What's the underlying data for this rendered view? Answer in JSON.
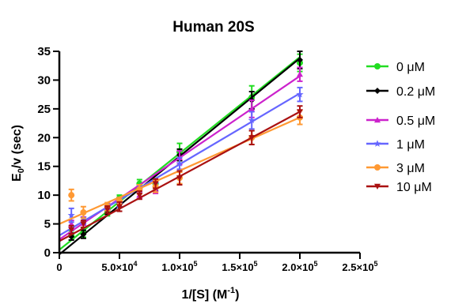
{
  "chart_data": {
    "type": "scatter",
    "title": "Human 20S",
    "xlabel": "1/[S] (M",
    "xlabel_sup": "-1",
    "xlabel_close": ")",
    "ylabel_pre": "E",
    "ylabel_sub": "0",
    "ylabel_post": "/v (sec)",
    "xlim": [
      0,
      250000
    ],
    "ylim": [
      0,
      35
    ],
    "x_ticks": [
      {
        "value": 0,
        "mant": "0",
        "exp": ""
      },
      {
        "value": 50000,
        "mant": "5.0×10",
        "exp": "4"
      },
      {
        "value": 100000,
        "mant": "1.0×10",
        "exp": "5"
      },
      {
        "value": 150000,
        "mant": "1.5×10",
        "exp": "5"
      },
      {
        "value": 200000,
        "mant": "2.0×10",
        "exp": "5"
      },
      {
        "value": 250000,
        "mant": "2.5×10",
        "exp": "5"
      }
    ],
    "y_ticks": [
      0,
      5,
      10,
      15,
      20,
      25,
      30,
      35
    ],
    "x": [
      10000,
      20000,
      40000,
      50000,
      66667,
      80000,
      100000,
      160000,
      200000
    ],
    "series": [
      {
        "name": "0 μM",
        "color": "#22dd22",
        "marker": "circle",
        "values": [
          3.0,
          3.5,
          7.0,
          9.5,
          12.0,
          12.0,
          17.5,
          27.0,
          33.0
        ],
        "errors": [
          0.8,
          0.8,
          0.6,
          0.5,
          0.7,
          0.8,
          1.5,
          2.0,
          1.5
        ],
        "fit": [
          0.5,
          34.0
        ]
      },
      {
        "name": "0.2 μM",
        "color": "#000000",
        "marker": "diamond",
        "values": [
          2.8,
          3.2,
          7.3,
          8.0,
          11.0,
          11.5,
          17.0,
          26.5,
          33.5
        ],
        "errors": [
          0.6,
          0.7,
          0.6,
          0.8,
          0.7,
          0.7,
          1.0,
          1.5,
          1.5
        ],
        "fit": [
          -0.3,
          33.8
        ]
      },
      {
        "name": "0.5 μM",
        "color": "#cc22cc",
        "marker": "triangle-up",
        "values": [
          5.0,
          5.5,
          8.0,
          9.0,
          10.0,
          11.0,
          16.5,
          25.0,
          31.0
        ],
        "errors": [
          0.6,
          0.7,
          0.5,
          0.6,
          0.6,
          0.7,
          1.2,
          1.5,
          1.2
        ],
        "fit": [
          2.3,
          30.7
        ]
      },
      {
        "name": "1 μM",
        "color": "#6666ff",
        "marker": "star",
        "values": [
          6.5,
          6.0,
          8.0,
          8.5,
          11.0,
          12.0,
          15.5,
          23.0,
          27.5
        ],
        "errors": [
          1.2,
          1.0,
          0.6,
          0.6,
          0.7,
          0.7,
          1.0,
          1.5,
          1.2
        ],
        "fit": [
          3.0,
          27.7
        ]
      },
      {
        "name": "3 μM",
        "color": "#ff9933",
        "marker": "circle",
        "values": [
          10.0,
          7.0,
          8.0,
          9.0,
          11.0,
          11.5,
          13.0,
          20.0,
          23.5
        ],
        "errors": [
          1.0,
          1.0,
          0.7,
          0.6,
          0.8,
          1.0,
          1.0,
          1.2,
          1.2
        ],
        "fit": [
          5.0,
          23.5
        ]
      },
      {
        "name": "10 μM",
        "color": "#aa1111",
        "marker": "triangle-down",
        "values": [
          4.0,
          5.0,
          7.5,
          8.0,
          10.0,
          12.0,
          13.0,
          20.0,
          24.5
        ],
        "errors": [
          0.7,
          0.6,
          0.6,
          0.8,
          0.7,
          0.8,
          1.2,
          1.2,
          1.0
        ],
        "fit": [
          2.0,
          24.5
        ]
      }
    ],
    "grid": false,
    "legend_position": "right"
  }
}
